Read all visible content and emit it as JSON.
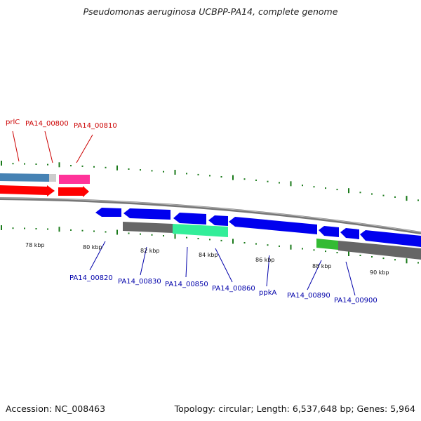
{
  "title": "Pseudomonas aeruginosa UCBPP-PA14, complete genome",
  "footer": {
    "accession": "Accession: NC_008463",
    "summary": "Topology: circular; Length: 6,537,648 bp; Genes: 5,964"
  },
  "colors": {
    "forward_gene": "#ff0000",
    "reverse_gene": "#0000ee",
    "forward_label": "#cc0000",
    "reverse_label": "#0000aa",
    "backbone": "#888888",
    "tick": "#1a7a1a",
    "feature_steelblue": "#4682b4",
    "feature_pink": "#ff3399",
    "feature_grey": "#666666",
    "feature_aqua": "#33ee99",
    "feature_green": "#33bb33"
  },
  "forward_labels": [
    "prlC",
    "PA14_00800",
    "PA14_00810"
  ],
  "reverse_labels": [
    "PA14_00820",
    "PA14_00830",
    "PA14_00850",
    "PA14_00860",
    "ppkA",
    "PA14_00890",
    "PA14_00900"
  ],
  "kbp_labels": [
    "78 kbp",
    "80 kbp",
    "82 kbp",
    "84 kbp",
    "86 kbp",
    "88 kbp",
    "90 kbp"
  ]
}
